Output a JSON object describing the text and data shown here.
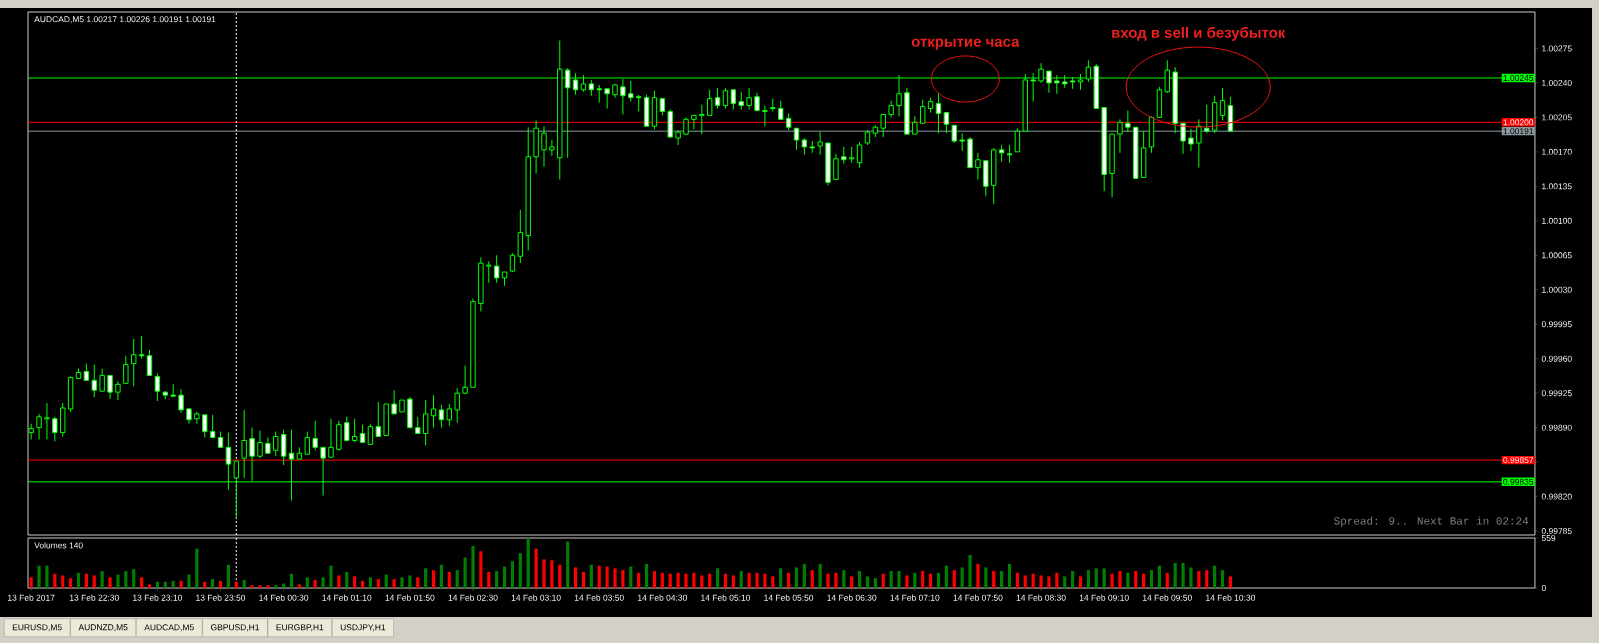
{
  "chart_data": [
    {
      "type": "candlestick",
      "title": "AUDCAD,M5  1.00217 1.00226 1.00191 1.00191",
      "color": "#00ff00",
      "x": [
        "2017-02-13T21:50",
        "2017-02-13T21:55",
        "2017-02-13T22:00",
        "2017-02-13T22:05",
        "2017-02-13T22:10",
        "2017-02-13T22:15",
        "2017-02-13T22:20",
        "2017-02-13T22:25",
        "2017-02-13T22:30",
        "2017-02-13T22:35",
        "2017-02-13T22:40",
        "2017-02-13T22:45",
        "2017-02-13T22:50",
        "2017-02-13T22:55",
        "2017-02-13T23:00",
        "2017-02-13T23:05",
        "2017-02-13T23:10",
        "2017-02-13T23:15",
        "2017-02-13T23:20",
        "2017-02-13T23:25",
        "2017-02-13T23:30",
        "2017-02-13T23:35",
        "2017-02-13T23:40",
        "2017-02-13T23:45",
        "2017-02-13T23:50",
        "2017-02-13T23:55",
        "2017-02-14T00:00",
        "2017-02-14T00:05",
        "2017-02-14T00:10",
        "2017-02-14T00:15",
        "2017-02-14T00:20",
        "2017-02-14T00:25",
        "2017-02-14T00:30",
        "2017-02-14T00:35",
        "2017-02-14T00:40",
        "2017-02-14T00:45",
        "2017-02-14T00:50",
        "2017-02-14T00:55",
        "2017-02-14T01:00",
        "2017-02-14T01:05",
        "2017-02-14T01:10",
        "2017-02-14T01:15",
        "2017-02-14T01:20",
        "2017-02-14T01:25",
        "2017-02-14T01:30",
        "2017-02-14T01:35",
        "2017-02-14T01:40",
        "2017-02-14T01:45",
        "2017-02-14T01:50",
        "2017-02-14T01:55",
        "2017-02-14T02:00",
        "2017-02-14T02:05",
        "2017-02-14T02:10",
        "2017-02-14T02:15",
        "2017-02-14T02:20",
        "2017-02-14T02:25",
        "2017-02-14T02:30",
        "2017-02-14T02:35",
        "2017-02-14T02:40",
        "2017-02-14T02:45",
        "2017-02-14T02:50",
        "2017-02-14T02:55",
        "2017-02-14T03:00",
        "2017-02-14T03:05",
        "2017-02-14T03:10",
        "2017-02-14T03:15",
        "2017-02-14T03:20",
        "2017-02-14T03:25",
        "2017-02-14T03:30",
        "2017-02-14T03:35",
        "2017-02-14T03:40",
        "2017-02-14T03:45",
        "2017-02-14T03:50",
        "2017-02-14T03:55",
        "2017-02-14T04:00",
        "2017-02-14T04:05",
        "2017-02-14T04:10",
        "2017-02-14T04:15",
        "2017-02-14T04:20",
        "2017-02-14T04:25",
        "2017-02-14T04:30",
        "2017-02-14T04:35",
        "2017-02-14T04:40",
        "2017-02-14T04:45",
        "2017-02-14T04:50",
        "2017-02-14T04:55",
        "2017-02-14T05:00",
        "2017-02-14T05:05",
        "2017-02-14T05:10",
        "2017-02-14T05:15",
        "2017-02-14T05:20",
        "2017-02-14T05:25",
        "2017-02-14T05:30",
        "2017-02-14T05:35",
        "2017-02-14T05:40",
        "2017-02-14T05:45",
        "2017-02-14T05:50",
        "2017-02-14T05:55",
        "2017-02-14T06:00",
        "2017-02-14T06:05",
        "2017-02-14T06:10",
        "2017-02-14T06:15",
        "2017-02-14T06:20",
        "2017-02-14T06:25",
        "2017-02-14T06:30",
        "2017-02-14T06:35",
        "2017-02-14T06:40",
        "2017-02-14T06:45",
        "2017-02-14T06:50",
        "2017-02-14T06:55",
        "2017-02-14T07:00",
        "2017-02-14T07:05",
        "2017-02-14T07:10",
        "2017-02-14T07:15",
        "2017-02-14T07:20",
        "2017-02-14T07:25",
        "2017-02-14T07:30",
        "2017-02-14T07:35",
        "2017-02-14T07:40",
        "2017-02-14T07:45",
        "2017-02-14T07:50",
        "2017-02-14T07:55",
        "2017-02-14T08:00",
        "2017-02-14T08:05",
        "2017-02-14T08:10",
        "2017-02-14T08:15",
        "2017-02-14T08:20",
        "2017-02-14T08:25",
        "2017-02-14T08:30",
        "2017-02-14T08:35",
        "2017-02-14T08:40",
        "2017-02-14T08:45",
        "2017-02-14T08:50",
        "2017-02-14T08:55",
        "2017-02-14T09:00",
        "2017-02-14T09:05",
        "2017-02-14T09:10",
        "2017-02-14T09:15",
        "2017-02-14T09:20",
        "2017-02-14T09:25",
        "2017-02-14T09:30",
        "2017-02-14T09:35",
        "2017-02-14T09:40",
        "2017-02-14T09:45",
        "2017-02-14T09:50",
        "2017-02-14T09:55",
        "2017-02-14T10:00",
        "2017-02-14T10:05",
        "2017-02-14T10:10",
        "2017-02-14T10:15",
        "2017-02-14T10:20",
        "2017-02-14T10:25",
        "2017-02-14T10:30"
      ],
      "ohlc": [
        [
          0.99885,
          0.99894,
          0.99878,
          0.99889
        ],
        [
          0.9989,
          0.99904,
          0.99878,
          0.99901
        ],
        [
          0.99899,
          0.99915,
          0.99878,
          0.999
        ],
        [
          0.99899,
          0.99901,
          0.99876,
          0.99885
        ],
        [
          0.99885,
          0.99915,
          0.99881,
          0.9991
        ],
        [
          0.99909,
          0.99942,
          0.99906,
          0.99941
        ],
        [
          0.9994,
          0.9995,
          0.9994,
          0.99946
        ],
        [
          0.99947,
          0.99955,
          0.99938,
          0.99938
        ],
        [
          0.99938,
          0.99954,
          0.99921,
          0.99928
        ],
        [
          0.99927,
          0.9995,
          0.99926,
          0.99943
        ],
        [
          0.99943,
          0.99943,
          0.99919,
          0.99926
        ],
        [
          0.99926,
          0.99937,
          0.99918,
          0.99934
        ],
        [
          0.99935,
          0.99963,
          0.99935,
          0.99954
        ],
        [
          0.99955,
          0.9998,
          0.99932,
          0.99964
        ],
        [
          0.99964,
          0.99983,
          0.9996,
          0.99963
        ],
        [
          0.99963,
          0.99969,
          0.99943,
          0.99943
        ],
        [
          0.99942,
          0.99945,
          0.99917,
          0.99927
        ],
        [
          0.99926,
          0.99927,
          0.99919,
          0.99923
        ],
        [
          0.99923,
          0.99934,
          0.99921,
          0.99922
        ],
        [
          0.99923,
          0.99929,
          0.99905,
          0.99908
        ],
        [
          0.99909,
          0.9991,
          0.99894,
          0.99898
        ],
        [
          0.99899,
          0.99906,
          0.99894,
          0.99904
        ],
        [
          0.99903,
          0.99903,
          0.9988,
          0.99886
        ],
        [
          0.99886,
          0.99903,
          0.99879,
          0.9988
        ],
        [
          0.9988,
          0.99886,
          0.9987,
          0.9987
        ],
        [
          0.9987,
          0.99885,
          0.99827,
          0.99853
        ],
        [
          0.99839,
          0.99856,
          0.99798,
          0.99856
        ],
        [
          0.99859,
          0.99908,
          0.99839,
          0.99877
        ],
        [
          0.99879,
          0.9989,
          0.99836,
          0.99861
        ],
        [
          0.99861,
          0.99887,
          0.99859,
          0.99875
        ],
        [
          0.99874,
          0.9988,
          0.99864,
          0.99864
        ],
        [
          0.99867,
          0.99886,
          0.99861,
          0.99881
        ],
        [
          0.99883,
          0.99888,
          0.99852,
          0.99861
        ],
        [
          0.99864,
          0.99888,
          0.99816,
          0.99858
        ],
        [
          0.99858,
          0.9987,
          0.99858,
          0.99864
        ],
        [
          0.99863,
          0.99886,
          0.99863,
          0.9988
        ],
        [
          0.99879,
          0.99897,
          0.99867,
          0.9987
        ],
        [
          0.9987,
          0.9987,
          0.99821,
          0.99859
        ],
        [
          0.9986,
          0.99899,
          0.9986,
          0.9987
        ],
        [
          0.99868,
          0.99897,
          0.99867,
          0.99893
        ],
        [
          0.99895,
          0.99901,
          0.99876,
          0.99877
        ],
        [
          0.99877,
          0.99899,
          0.99875,
          0.99881
        ],
        [
          0.99884,
          0.99893,
          0.99875,
          0.99875
        ],
        [
          0.99873,
          0.99894,
          0.99873,
          0.99891
        ],
        [
          0.99891,
          0.99916,
          0.99881,
          0.99881
        ],
        [
          0.99882,
          0.99914,
          0.99882,
          0.99914
        ],
        [
          0.99914,
          0.99928,
          0.99904,
          0.99904
        ],
        [
          0.99906,
          0.99918,
          0.99906,
          0.99918
        ],
        [
          0.99919,
          0.99921,
          0.99889,
          0.9989
        ],
        [
          0.9989,
          0.99901,
          0.99884,
          0.99884
        ],
        [
          0.99884,
          0.99918,
          0.99872,
          0.99904
        ],
        [
          0.99902,
          0.99923,
          0.9989,
          0.99909
        ],
        [
          0.99908,
          0.99913,
          0.9989,
          0.99898
        ],
        [
          0.99898,
          0.99914,
          0.99892,
          0.99909
        ],
        [
          0.99908,
          0.9993,
          0.99895,
          0.99925
        ],
        [
          0.99925,
          0.99953,
          0.99924,
          0.99931
        ],
        [
          0.99931,
          1.00021,
          0.99931,
          1.00018
        ],
        [
          1.00016,
          1.00063,
          1.00008,
          1.00057
        ],
        [
          1.00054,
          1.00059,
          1.00037,
          1.00055
        ],
        [
          1.00054,
          1.00065,
          1.00037,
          1.00042
        ],
        [
          1.00042,
          1.00048,
          1.00034,
          1.00048
        ],
        [
          1.00049,
          1.00067,
          1.00048,
          1.00065
        ],
        [
          1.00064,
          1.00111,
          1.00057,
          1.00088
        ],
        [
          1.00085,
          1.00195,
          1.0007,
          1.00165
        ],
        [
          1.00165,
          1.00202,
          1.00148,
          1.00194
        ],
        [
          1.00172,
          1.00196,
          1.00155,
          1.00189
        ],
        [
          1.00172,
          1.00182,
          1.00166,
          1.00175
        ],
        [
          1.00164,
          1.00283,
          1.00142,
          1.00254
        ],
        [
          1.00253,
          1.00255,
          1.00164,
          1.00235
        ],
        [
          1.00243,
          1.0025,
          1.00228,
          1.00233
        ],
        [
          1.00233,
          1.00248,
          1.00231,
          1.00239
        ],
        [
          1.00239,
          1.00243,
          1.00227,
          1.00233
        ],
        [
          1.00234,
          1.00238,
          1.0022,
          1.00233
        ],
        [
          1.00234,
          1.00234,
          1.00214,
          1.00229
        ],
        [
          1.00228,
          1.00239,
          1.00225,
          1.00238
        ],
        [
          1.00236,
          1.00244,
          1.00208,
          1.00227
        ],
        [
          1.00229,
          1.00242,
          1.00221,
          1.00225
        ],
        [
          1.00226,
          1.00228,
          1.00211,
          1.00225
        ],
        [
          1.00225,
          1.00228,
          1.00196,
          1.00196
        ],
        [
          1.00196,
          1.00232,
          1.00193,
          1.00225
        ],
        [
          1.00224,
          1.00225,
          1.00207,
          1.00211
        ],
        [
          1.00211,
          1.00213,
          1.00185,
          1.00185
        ],
        [
          1.00184,
          1.00192,
          1.00177,
          1.0019
        ],
        [
          1.00188,
          1.00205,
          1.00187,
          1.00203
        ],
        [
          1.00203,
          1.00207,
          1.00193,
          1.00207
        ],
        [
          1.00207,
          1.00218,
          1.00188,
          1.00208
        ],
        [
          1.00207,
          1.00233,
          1.00207,
          1.00224
        ],
        [
          1.00225,
          1.00235,
          1.00214,
          1.00217
        ],
        [
          1.00217,
          1.00235,
          1.00214,
          1.00232
        ],
        [
          1.00233,
          1.00233,
          1.00213,
          1.00219
        ],
        [
          1.00221,
          1.00231,
          1.00213,
          1.00217
        ],
        [
          1.00217,
          1.00235,
          1.00213,
          1.00225
        ],
        [
          1.00226,
          1.0023,
          1.00211,
          1.00212
        ],
        [
          1.00212,
          1.00217,
          1.00196,
          1.00211
        ],
        [
          1.00214,
          1.00224,
          1.00211,
          1.00215
        ],
        [
          1.00214,
          1.00222,
          1.00203,
          1.00203
        ],
        [
          1.00204,
          1.00209,
          1.00192,
          1.00195
        ],
        [
          1.00194,
          1.00194,
          1.00172,
          1.00182
        ],
        [
          1.00182,
          1.00184,
          1.00167,
          1.00175
        ],
        [
          1.00175,
          1.00181,
          1.00169,
          1.00174
        ],
        [
          1.00176,
          1.0019,
          1.00167,
          1.0018
        ],
        [
          1.00179,
          1.00179,
          1.00136,
          1.00139
        ],
        [
          1.00142,
          1.00168,
          1.00142,
          1.00163
        ],
        [
          1.00165,
          1.00175,
          1.00158,
          1.00162
        ],
        [
          1.00163,
          1.00175,
          1.00159,
          1.00164
        ],
        [
          1.00159,
          1.0018,
          1.00154,
          1.00177
        ],
        [
          1.00179,
          1.00192,
          1.00177,
          1.0019
        ],
        [
          1.00189,
          1.00197,
          1.00185,
          1.00195
        ],
        [
          1.00194,
          1.00208,
          1.00185,
          1.00208
        ],
        [
          1.00208,
          1.00222,
          1.00205,
          1.00217
        ],
        [
          1.00217,
          1.00248,
          1.00206,
          1.00229
        ],
        [
          1.0023,
          1.00235,
          1.00188,
          1.00188
        ],
        [
          1.00188,
          1.00206,
          1.00188,
          1.002
        ],
        [
          1.00199,
          1.00223,
          1.00199,
          1.00216
        ],
        [
          1.00214,
          1.00225,
          1.0021,
          1.00221
        ],
        [
          1.00219,
          1.0023,
          1.00189,
          1.00209
        ],
        [
          1.0021,
          1.0021,
          1.00189,
          1.00198
        ],
        [
          1.00197,
          1.00197,
          1.00179,
          1.00181
        ],
        [
          1.00182,
          1.00189,
          1.00171,
          1.00181
        ],
        [
          1.00183,
          1.00185,
          1.00154,
          1.00154
        ],
        [
          1.00154,
          1.00169,
          1.00142,
          1.00162
        ],
        [
          1.00161,
          1.00161,
          1.00125,
          1.00135
        ],
        [
          1.00136,
          1.00174,
          1.00117,
          1.00172
        ],
        [
          1.00172,
          1.00177,
          1.0016,
          1.00169
        ],
        [
          1.00168,
          1.00177,
          1.00159,
          1.00167
        ],
        [
          1.0017,
          1.00194,
          1.0017,
          1.00191
        ],
        [
          1.00191,
          1.00249,
          1.00191,
          1.00243
        ],
        [
          1.00243,
          1.0025,
          1.00221,
          1.00242
        ],
        [
          1.00242,
          1.0026,
          1.0024,
          1.00254
        ],
        [
          1.00252,
          1.00252,
          1.0023,
          1.0024
        ],
        [
          1.00242,
          1.00248,
          1.00229,
          1.0024
        ],
        [
          1.00241,
          1.00248,
          1.00235,
          1.00239
        ],
        [
          1.00242,
          1.00246,
          1.00234,
          1.00241
        ],
        [
          1.00241,
          1.00249,
          1.00233,
          1.00243
        ],
        [
          1.00244,
          1.00263,
          1.00241,
          1.00256
        ],
        [
          1.00257,
          1.00259,
          1.00214,
          1.00214
        ],
        [
          1.00215,
          1.00215,
          1.0013,
          1.00147
        ],
        [
          1.00148,
          1.00188,
          1.00124,
          1.00188
        ],
        [
          1.00188,
          1.00203,
          1.00169,
          1.002
        ],
        [
          1.00199,
          1.00212,
          1.0019,
          1.00195
        ],
        [
          1.00195,
          1.00195,
          1.00143,
          1.00143
        ],
        [
          1.00144,
          1.00191,
          1.00144,
          1.00174
        ],
        [
          1.00175,
          1.00206,
          1.00169,
          1.00205
        ],
        [
          1.00205,
          1.00236,
          1.00205,
          1.00233
        ],
        [
          1.00231,
          1.00263,
          1.0023,
          1.00253
        ],
        [
          1.00251,
          1.00256,
          1.00189,
          1.00199
        ],
        [
          1.00199,
          1.00199,
          1.00168,
          1.00181
        ],
        [
          1.00184,
          1.00193,
          1.00171,
          1.00178
        ],
        [
          1.00179,
          1.00203,
          1.00154,
          1.00196
        ],
        [
          1.00194,
          1.00218,
          1.00189,
          1.00191
        ],
        [
          1.00192,
          1.00227,
          1.00189,
          1.0022
        ],
        [
          1.00207,
          1.00235,
          1.00202,
          1.00222
        ],
        [
          1.00217,
          1.00226,
          1.00191,
          1.00191
        ]
      ],
      "xlim": [
        "2017-02-13T21:48",
        "2017-02-14T13:43"
      ],
      "ylim": [
        0.99781,
        1.00312
      ],
      "yticks": [
        {
          "value": 0.99785,
          "label": "0.99785"
        },
        {
          "value": 0.9982,
          "label": "0.99820"
        },
        {
          "value": 0.99855,
          "label": null
        },
        {
          "value": 0.9989,
          "label": "0.99890"
        },
        {
          "value": 0.99925,
          "label": "0.99925"
        },
        {
          "value": 0.9996,
          "label": "0.99960"
        },
        {
          "value": 0.99995,
          "label": "0.99995"
        },
        {
          "value": 1.0003,
          "label": "1.00030"
        },
        {
          "value": 1.00065,
          "label": "1.00065"
        },
        {
          "value": 1.001,
          "label": "1.00100"
        },
        {
          "value": 1.00135,
          "label": "1.00135"
        },
        {
          "value": 1.0017,
          "label": "1.00170"
        },
        {
          "value": 1.00205,
          "label": "1.00205"
        },
        {
          "value": 1.0024,
          "label": "1.00240"
        },
        {
          "value": 1.00275,
          "label": "1.00275"
        }
      ],
      "xticks": [
        {
          "value": "2017-02-13T21:50",
          "label": null
        },
        {
          "value": "2017-02-13T22:30",
          "label": null
        },
        {
          "value": "2017-02-13T23:10",
          "label": null
        },
        {
          "value": "2017-02-13T23:50",
          "label": null
        },
        {
          "value": "2017-02-14T00:30",
          "label": null
        },
        {
          "value": "2017-02-14T01:10",
          "label": null
        },
        {
          "value": "2017-02-14T01:50",
          "label": null
        },
        {
          "value": "2017-02-14T02:30",
          "label": null
        },
        {
          "value": "2017-02-14T03:10",
          "label": null
        },
        {
          "value": "2017-02-14T03:50",
          "label": null
        },
        {
          "value": "2017-02-14T04:30",
          "label": null
        },
        {
          "value": "2017-02-14T05:10",
          "label": null
        },
        {
          "value": "2017-02-14T05:50",
          "label": null
        },
        {
          "value": "2017-02-14T06:30",
          "label": null
        },
        {
          "value": "2017-02-14T07:10",
          "label": null
        },
        {
          "value": "2017-02-14T07:50",
          "label": null
        },
        {
          "value": "2017-02-14T08:30",
          "label": null
        },
        {
          "value": "2017-02-14T09:10",
          "label": null
        },
        {
          "value": "2017-02-14T09:50",
          "label": null
        },
        {
          "value": "2017-02-14T10:30",
          "label": null
        }
      ],
      "tick_labels": "y",
      "ref_lines": [
        {
          "axis": "y",
          "value": 1.00245,
          "label": "1.00245",
          "color": "#00ff00"
        },
        {
          "axis": "y",
          "value": 1.002,
          "label": "1.00200",
          "color": "#ff0000"
        },
        {
          "axis": "y",
          "value": 1.00191,
          "label": "1.00191",
          "color": "#8c9aa0"
        },
        {
          "axis": "y",
          "value": 0.99857,
          "label": "0.99857",
          "color": "#ff0000"
        },
        {
          "axis": "y",
          "value": 0.99835,
          "label": "0.99835",
          "color": "#00ff00"
        },
        {
          "axis": "x",
          "value": "2017-02-14T00:00",
          "color": "#ffffff",
          "line_style": "dashed"
        }
      ],
      "annotations": [
        {
          "text": "открытие часа",
          "x": "2017-02-14T07:42",
          "y": 1.00244
        },
        {
          "text": "вход в sell и безубыток",
          "x": "2017-02-14T09:55",
          "y": 1.00251
        },
        "Spread: 9.. Next Bar in 02:24"
      ]
    },
    {
      "type": "bar",
      "title": "Volumes 140",
      "x": [
        "2017-02-13T21:50",
        "2017-02-13T21:55",
        "2017-02-13T22:00",
        "2017-02-13T22:05",
        "2017-02-13T22:10",
        "2017-02-13T22:15",
        "2017-02-13T22:20",
        "2017-02-13T22:25",
        "2017-02-13T22:30",
        "2017-02-13T22:35",
        "2017-02-13T22:40",
        "2017-02-13T22:45",
        "2017-02-13T22:50",
        "2017-02-13T22:55",
        "2017-02-13T23:00",
        "2017-02-13T23:05",
        "2017-02-13T23:10",
        "2017-02-13T23:15",
        "2017-02-13T23:20",
        "2017-02-13T23:25",
        "2017-02-13T23:30",
        "2017-02-13T23:35",
        "2017-02-13T23:40",
        "2017-02-13T23:45",
        "2017-02-13T23:50",
        "2017-02-13T23:55",
        "2017-02-14T00:00",
        "2017-02-14T00:05",
        "2017-02-14T00:10",
        "2017-02-14T00:15",
        "2017-02-14T00:20",
        "2017-02-14T00:25",
        "2017-02-14T00:30",
        "2017-02-14T00:35",
        "2017-02-14T00:40",
        "2017-02-14T00:45",
        "2017-02-14T00:50",
        "2017-02-14T00:55",
        "2017-02-14T01:00",
        "2017-02-14T01:05",
        "2017-02-14T01:10",
        "2017-02-14T01:15",
        "2017-02-14T01:20",
        "2017-02-14T01:25",
        "2017-02-14T01:30",
        "2017-02-14T01:35",
        "2017-02-14T01:40",
        "2017-02-14T01:45",
        "2017-02-14T01:50",
        "2017-02-14T01:55",
        "2017-02-14T02:00",
        "2017-02-14T02:05",
        "2017-02-14T02:10",
        "2017-02-14T02:15",
        "2017-02-14T02:20",
        "2017-02-14T02:25",
        "2017-02-14T02:30",
        "2017-02-14T02:35",
        "2017-02-14T02:40",
        "2017-02-14T02:45",
        "2017-02-14T02:50",
        "2017-02-14T02:55",
        "2017-02-14T03:00",
        "2017-02-14T03:05",
        "2017-02-14T03:10",
        "2017-02-14T03:15",
        "2017-02-14T03:20",
        "2017-02-14T03:25",
        "2017-02-14T03:30",
        "2017-02-14T03:35",
        "2017-02-14T03:40",
        "2017-02-14T03:45",
        "2017-02-14T03:50",
        "2017-02-14T03:55",
        "2017-02-14T04:00",
        "2017-02-14T04:05",
        "2017-02-14T04:10",
        "2017-02-14T04:15",
        "2017-02-14T04:20",
        "2017-02-14T04:25",
        "2017-02-14T04:30",
        "2017-02-14T04:35",
        "2017-02-14T04:40",
        "2017-02-14T04:45",
        "2017-02-14T04:50",
        "2017-02-14T04:55",
        "2017-02-14T05:00",
        "2017-02-14T05:05",
        "2017-02-14T05:10",
        "2017-02-14T05:15",
        "2017-02-14T05:20",
        "2017-02-14T05:25",
        "2017-02-14T05:30",
        "2017-02-14T05:35",
        "2017-02-14T05:40",
        "2017-02-14T05:45",
        "2017-02-14T05:50",
        "2017-02-14T05:55",
        "2017-02-14T06:00",
        "2017-02-14T06:05",
        "2017-02-14T06:10",
        "2017-02-14T06:15",
        "2017-02-14T06:20",
        "2017-02-14T06:25",
        "2017-02-14T06:30",
        "2017-02-14T06:35",
        "2017-02-14T06:40",
        "2017-02-14T06:45",
        "2017-02-14T06:50",
        "2017-02-14T06:55",
        "2017-02-14T07:00",
        "2017-02-14T07:05",
        "2017-02-14T07:10",
        "2017-02-14T07:15",
        "2017-02-14T07:20",
        "2017-02-14T07:25",
        "2017-02-14T07:30",
        "2017-02-14T07:35",
        "2017-02-14T07:40",
        "2017-02-14T07:45",
        "2017-02-14T07:50",
        "2017-02-14T07:55",
        "2017-02-14T08:00",
        "2017-02-14T08:05",
        "2017-02-14T08:10",
        "2017-02-14T08:15",
        "2017-02-14T08:20",
        "2017-02-14T08:25",
        "2017-02-14T08:30",
        "2017-02-14T08:35",
        "2017-02-14T08:40",
        "2017-02-14T08:45",
        "2017-02-14T08:50",
        "2017-02-14T08:55",
        "2017-02-14T09:00",
        "2017-02-14T09:05",
        "2017-02-14T09:10",
        "2017-02-14T09:15",
        "2017-02-14T09:20",
        "2017-02-14T09:25",
        "2017-02-14T09:30",
        "2017-02-14T09:35",
        "2017-02-14T09:40",
        "2017-02-14T09:45",
        "2017-02-14T09:50",
        "2017-02-14T09:55",
        "2017-02-14T10:00",
        "2017-02-14T10:05",
        "2017-02-14T10:10",
        "2017-02-14T10:15",
        "2017-02-14T10:20",
        "2017-02-14T10:25",
        "2017-02-14T10:30"
      ],
      "values": [
        120,
        250,
        250,
        160,
        140,
        110,
        170,
        160,
        140,
        190,
        120,
        150,
        190,
        210,
        120,
        40,
        70,
        70,
        80,
        80,
        150,
        440,
        70,
        100,
        80,
        260,
        70,
        90,
        30,
        30,
        30,
        30,
        50,
        160,
        40,
        120,
        90,
        120,
        250,
        140,
        180,
        130,
        80,
        120,
        100,
        150,
        100,
        120,
        140,
        120,
        220,
        200,
        260,
        180,
        200,
        340,
        470,
        410,
        180,
        190,
        240,
        300,
        390,
        559,
        440,
        320,
        310,
        260,
        520,
        230,
        180,
        260,
        250,
        240,
        220,
        200,
        240,
        170,
        270,
        190,
        170,
        160,
        170,
        160,
        170,
        140,
        160,
        220,
        160,
        140,
        190,
        170,
        170,
        160,
        130,
        220,
        170,
        230,
        270,
        200,
        270,
        160,
        170,
        200,
        130,
        190,
        130,
        110,
        160,
        190,
        190,
        140,
        170,
        190,
        160,
        170,
        250,
        200,
        230,
        370,
        270,
        230,
        190,
        190,
        270,
        170,
        140,
        160,
        140,
        130,
        170,
        130,
        190,
        130,
        200,
        220,
        220,
        160,
        190,
        170,
        190,
        160,
        200,
        250,
        170,
        280,
        280,
        230,
        190,
        200,
        250,
        200,
        130
      ],
      "colors": [
        "#ff0000",
        "#008000",
        "#008000",
        "#ff0000",
        "#ff0000",
        "#ff0000",
        "#008000",
        "#ff0000",
        "#ff0000",
        "#008000",
        "#ff0000",
        "#008000",
        "#008000",
        "#008000",
        "#ff0000",
        "#ff0000",
        "#008000",
        "#008000",
        "#008000",
        "#ff0000",
        "#008000",
        "#008000",
        "#ff0000",
        "#008000",
        "#ff0000",
        "#008000",
        "#ff0000",
        "#008000",
        "#ff0000",
        "#ff0000",
        "#ff0000",
        "#008000",
        "#008000",
        "#008000",
        "#ff0000",
        "#008000",
        "#ff0000",
        "#008000",
        "#008000",
        "#ff0000",
        "#008000",
        "#ff0000",
        "#ff0000",
        "#008000",
        "#ff0000",
        "#008000",
        "#ff0000",
        "#008000",
        "#008000",
        "#ff0000",
        "#008000",
        "#ff0000",
        "#008000",
        "#ff0000",
        "#008000",
        "#008000",
        "#008000",
        "#ff0000",
        "#ff0000",
        "#008000",
        "#008000",
        "#008000",
        "#008000",
        "#008000",
        "#ff0000",
        "#ff0000",
        "#ff0000",
        "#ff0000",
        "#008000",
        "#ff0000",
        "#ff0000",
        "#008000",
        "#ff0000",
        "#ff0000",
        "#ff0000",
        "#ff0000",
        "#008000",
        "#ff0000",
        "#008000",
        "#ff0000",
        "#ff0000",
        "#ff0000",
        "#ff0000",
        "#ff0000",
        "#ff0000",
        "#ff0000",
        "#ff0000",
        "#008000",
        "#ff0000",
        "#ff0000",
        "#008000",
        "#ff0000",
        "#ff0000",
        "#ff0000",
        "#ff0000",
        "#008000",
        "#ff0000",
        "#008000",
        "#008000",
        "#ff0000",
        "#008000",
        "#ff0000",
        "#ff0000",
        "#008000",
        "#ff0000",
        "#008000",
        "#008000",
        "#008000",
        "#ff0000",
        "#008000",
        "#008000",
        "#ff0000",
        "#008000",
        "#ff0000",
        "#ff0000",
        "#008000",
        "#008000",
        "#ff0000",
        "#008000",
        "#008000",
        "#ff0000",
        "#008000",
        "#ff0000",
        "#008000",
        "#008000",
        "#ff0000",
        "#ff0000",
        "#ff0000",
        "#ff0000",
        "#ff0000",
        "#ff0000",
        "#008000",
        "#008000",
        "#ff0000",
        "#008000",
        "#008000",
        "#008000",
        "#ff0000",
        "#ff0000",
        "#008000",
        "#ff0000",
        "#ff0000",
        "#008000",
        "#008000",
        "#ff0000",
        "#008000",
        "#008000",
        "#008000",
        "#ff0000",
        "#ff0000",
        "#008000",
        "#008000",
        "#ff0000"
      ],
      "xlim": [
        "2017-02-13T21:48",
        "2017-02-14T13:43"
      ],
      "ylim": [
        0,
        559
      ],
      "yticks": [
        0,
        559
      ],
      "xticks": [
        {
          "value": "2017-02-13T21:50",
          "label": "13 Feb 2017"
        },
        {
          "value": "2017-02-13T22:30",
          "label": "13 Feb 22:30"
        },
        {
          "value": "2017-02-13T23:10",
          "label": "13 Feb 23:10"
        },
        {
          "value": "2017-02-13T23:50",
          "label": "13 Feb 23:50"
        },
        {
          "value": "2017-02-14T00:30",
          "label": "14 Feb 00:30"
        },
        {
          "value": "2017-02-14T01:10",
          "label": "14 Feb 01:10"
        },
        {
          "value": "2017-02-14T01:50",
          "label": "14 Feb 01:50"
        },
        {
          "value": "2017-02-14T02:30",
          "label": "14 Feb 02:30"
        },
        {
          "value": "2017-02-14T03:10",
          "label": "14 Feb 03:10"
        },
        {
          "value": "2017-02-14T03:50",
          "label": "14 Feb 03:50"
        },
        {
          "value": "2017-02-14T04:30",
          "label": "14 Feb 04:30"
        },
        {
          "value": "2017-02-14T05:10",
          "label": "14 Feb 05:10"
        },
        {
          "value": "2017-02-14T05:50",
          "label": "14 Feb 05:50"
        },
        {
          "value": "2017-02-14T06:30",
          "label": "14 Feb 06:30"
        },
        {
          "value": "2017-02-14T07:10",
          "label": "14 Feb 07:10"
        },
        {
          "value": "2017-02-14T07:50",
          "label": "14 Feb 07:50"
        },
        {
          "value": "2017-02-14T08:30",
          "label": "14 Feb 08:30"
        },
        {
          "value": "2017-02-14T09:10",
          "label": "14 Feb 09:10"
        },
        {
          "value": "2017-02-14T09:50",
          "label": "14 Feb 09:50"
        },
        {
          "value": "2017-02-14T10:30",
          "label": "14 Feb 10:30"
        }
      ],
      "ref_lines": [
        {
          "axis": "x",
          "value": "2017-02-14T00:00",
          "color": "#ffffff",
          "line_style": "dashed"
        }
      ],
      "annotations": [
        "EURUSD,M5",
        "AUDNZD,M5",
        "AUDCAD,M5",
        "GBPUSD,H1",
        "EURGBP,H1",
        "USDJPY,H1"
      ]
    }
  ]
}
